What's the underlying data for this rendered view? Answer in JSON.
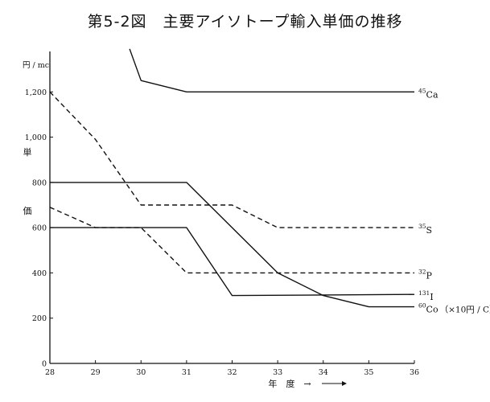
{
  "title": "第5-2図　主要アイソトープ輸入単価の推移",
  "chart_data": {
    "type": "line",
    "title": "第5-2図　主要アイソトープ輸入単価の推移",
    "xlabel": "年　度　→",
    "ylabel": "単　価",
    "yunit": "円 / mc",
    "x": [
      28,
      29,
      30,
      31,
      32,
      33,
      34,
      35,
      36
    ],
    "xlim": [
      28,
      36
    ],
    "ylim": [
      0,
      1400
    ],
    "yticks": [
      0,
      200,
      400,
      600,
      800,
      1000,
      1200
    ],
    "ytick_labels": [
      "0",
      "200",
      "400",
      "600",
      "800",
      "1,000",
      "1,200"
    ],
    "grid": false,
    "series": [
      {
        "name": "45Ca",
        "label_sup": "45",
        "label_main": "Ca",
        "style": "solid",
        "x": [
          29.75,
          30,
          31,
          36
        ],
        "y": [
          1390,
          1250,
          1200,
          1200
        ]
      },
      {
        "name": "35S",
        "label_sup": "35",
        "label_main": "S",
        "style": "dashed",
        "x": [
          28,
          29,
          30,
          32,
          33,
          36
        ],
        "y": [
          1200,
          990,
          700,
          700,
          600,
          600
        ]
      },
      {
        "name": "32P",
        "label_sup": "32",
        "label_main": "P",
        "style": "dashed",
        "x": [
          28,
          29,
          30,
          31,
          36
        ],
        "y": [
          690,
          600,
          600,
          400,
          400
        ]
      },
      {
        "name": "131I",
        "label_sup": "131",
        "label_main": "I",
        "style": "solid",
        "x": [
          28,
          31,
          32,
          36
        ],
        "y": [
          600,
          600,
          300,
          305
        ]
      },
      {
        "name": "60Co",
        "label_sup": "60",
        "label_main": "Co",
        "style": "solid",
        "label_suffix": "（×10円 / C）",
        "x": [
          28,
          31,
          33,
          34,
          35,
          36
        ],
        "y": [
          800,
          800,
          400,
          300,
          250,
          250
        ]
      }
    ]
  }
}
